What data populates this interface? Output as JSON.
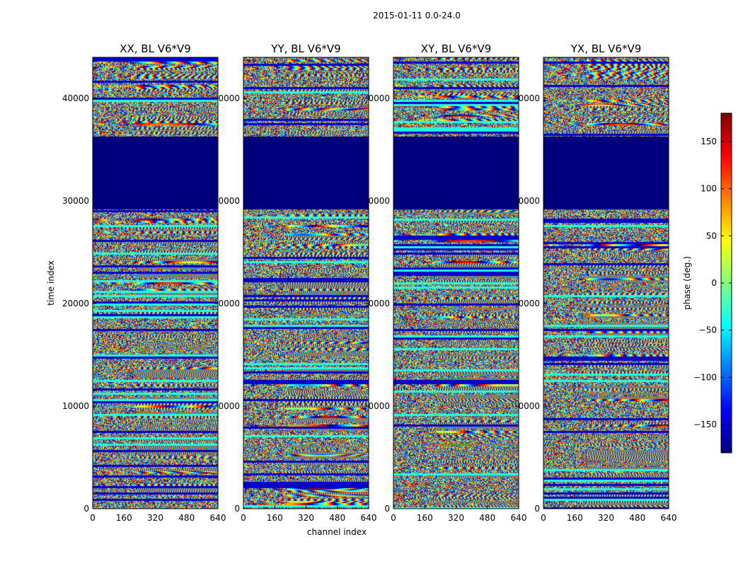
{
  "chart_data": {
    "type": "heatmap",
    "suptitle": "2015-01-11 0.0-24.0",
    "xlabel": "channel index",
    "ylabel": "time index",
    "xlim": [
      0,
      640
    ],
    "ylim": [
      0,
      44000
    ],
    "x_ticks": [
      "0",
      "160",
      "320",
      "480",
      "640"
    ],
    "x_tick_values": [
      0,
      160,
      320,
      480,
      640
    ],
    "y_ticks": [
      "0",
      "10000",
      "20000",
      "30000",
      "40000"
    ],
    "y_tick_values": [
      0,
      10000,
      20000,
      30000,
      40000
    ],
    "y_tick_labels_visible_on_inner_panels": [
      "0",
      "0000",
      "0000",
      "0000",
      "0000"
    ],
    "panels": [
      {
        "title": "XX, BL V6*V9"
      },
      {
        "title": "YY, BL V6*V9"
      },
      {
        "title": "XY, BL V6*V9"
      },
      {
        "title": "YX, BL V6*V9"
      }
    ],
    "blank_block_time_range": [
      29200,
      36300
    ],
    "colorbar": {
      "label": "phase (deg.)",
      "range": [
        -180,
        180
      ],
      "ticks": [
        "150",
        "100",
        "50",
        "0",
        "−50",
        "−100",
        "−150"
      ],
      "tick_values": [
        150,
        100,
        50,
        0,
        -50,
        -100,
        -150
      ],
      "colormap": "jet",
      "stops": [
        "#00007f",
        "#0000ff",
        "#007fff",
        "#00ffff",
        "#7fff7f",
        "#ffff00",
        "#ff7f00",
        "#ff0000",
        "#7f0000"
      ]
    }
  }
}
